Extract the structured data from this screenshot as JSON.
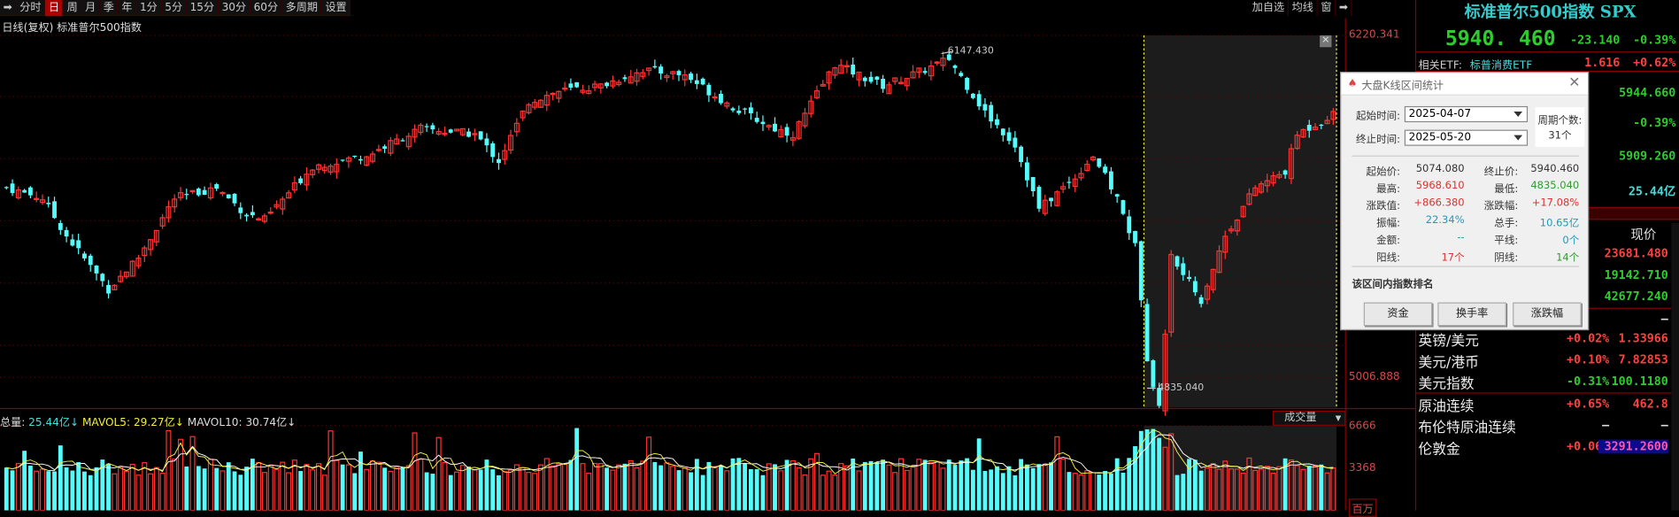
{
  "toolbar": {
    "items": [
      "分时",
      "日",
      "周",
      "月",
      "季",
      "年",
      "1分",
      "5分",
      "15分",
      "30分",
      "60分",
      "多周期",
      "设置"
    ],
    "active": "日",
    "right_items": [
      "加自选",
      "均线",
      "窗"
    ]
  },
  "chart": {
    "title": "日线(复权)  标准普尔500指数",
    "axis_top": "6220.341",
    "axis_low": "5006.888",
    "high_marker": "6147.430",
    "low_marker": "4835.040",
    "volume_header": {
      "total_label": "总量:",
      "total": "25.44亿↓",
      "mavol5_label": "MAVOL5:",
      "mavol5": "29.27亿↓",
      "mavol10_label": "MAVOL10:",
      "mavol10": "30.74亿↓"
    },
    "volume_selector": "成交量",
    "vol_axis": [
      "6666",
      "3368",
      "百万"
    ]
  },
  "chart_data": {
    "type": "candlestick",
    "ylim": [
      4835.04,
      6220.341
    ],
    "close_keypoints": [
      [
        0,
        5680
      ],
      [
        6,
        5642
      ],
      [
        10,
        5509
      ],
      [
        17,
        5319
      ],
      [
        22,
        5433
      ],
      [
        28,
        5642
      ],
      [
        35,
        5680
      ],
      [
        40,
        5585
      ],
      [
        43,
        5566
      ],
      [
        51,
        5756
      ],
      [
        60,
        5794
      ],
      [
        69,
        5889
      ],
      [
        78,
        5870
      ],
      [
        82,
        5775
      ],
      [
        87,
        5985
      ],
      [
        92,
        6022
      ],
      [
        99,
        6041
      ],
      [
        106,
        6098
      ],
      [
        113,
        6079
      ],
      [
        121,
        5965
      ],
      [
        128,
        5889
      ],
      [
        131,
        5870
      ],
      [
        138,
        6118
      ],
      [
        146,
        6041
      ],
      [
        153,
        6098
      ],
      [
        157,
        6137
      ],
      [
        163,
        5946
      ],
      [
        168,
        5832
      ],
      [
        172,
        5604
      ],
      [
        178,
        5718
      ],
      [
        181,
        5794
      ],
      [
        185,
        5642
      ],
      [
        188,
        5471
      ],
      [
        190,
        5074
      ],
      [
        192,
        4900
      ],
      [
        194,
        5433
      ],
      [
        199,
        5281
      ],
      [
        203,
        5509
      ],
      [
        208,
        5680
      ],
      [
        213,
        5737
      ],
      [
        215,
        5870
      ],
      [
        221,
        5940
      ]
    ],
    "selection": {
      "start_index": 190,
      "end_index": 221
    },
    "up_color": "#ff3232",
    "down_color": "#54fcfc"
  },
  "dialog": {
    "title": "大盘K线区间统计",
    "start_label": "起始时间:",
    "start": "2025-04-07",
    "end_label": "终止时间:",
    "end": "2025-05-20",
    "period_label": "周期个数:",
    "period": "31个",
    "stats": [
      [
        "起始价:",
        "5074.080",
        "#333",
        "终止价:",
        "5940.460",
        "#333"
      ],
      [
        "最高:",
        "5968.610",
        "#d33",
        "最低:",
        "4835.040",
        "#393"
      ],
      [
        "涨跌值:",
        "+866.380",
        "#d33",
        "涨跌幅:",
        "+17.08%",
        "#d33"
      ],
      [
        "振幅:",
        "22.34%",
        "#29b",
        "总手:",
        "10.65亿",
        "#29b"
      ],
      [
        "金额:",
        "--",
        "#29b",
        "平线:",
        "0个",
        "#29b"
      ],
      [
        "阳线:",
        "17个",
        "#d33",
        "阴线:",
        "14个",
        "#393"
      ]
    ],
    "ranking_label": "该区间内指数排名",
    "buttons": [
      "资金",
      "换手率",
      "涨跌幅"
    ]
  },
  "right": {
    "title": "标准普尔500指数 SPX",
    "price": "5940. 460",
    "change": "-23.140",
    "pct": "-0.39%",
    "etf_label": "相关ETF:",
    "etf_name": "标普消费ETF",
    "etf_price": "1.616",
    "etf_pct": "+0.62%",
    "v1": "5944.660",
    "v2": "-0.39%",
    "v3": "5909.260",
    "v4": "25.44亿",
    "col_header": "现价",
    "indices": [
      [
        "23681.480",
        "r"
      ],
      [
        "19142.710",
        "g"
      ],
      [
        "42677.240",
        "g"
      ]
    ],
    "dash": "–",
    "rows": [
      [
        "英镑/美元",
        "+0.02%",
        "1.33966"
      ],
      [
        "美元/港币",
        "+0.10%",
        "7.82853"
      ],
      [
        "美元指数",
        "-0.31%",
        "100.1180"
      ],
      [
        "原油连续",
        "+0.65%",
        "462.8"
      ],
      [
        "布伦特原油连续",
        "–",
        "–"
      ],
      [
        "伦敦金",
        "+0.06%",
        "3291.2600"
      ]
    ]
  }
}
